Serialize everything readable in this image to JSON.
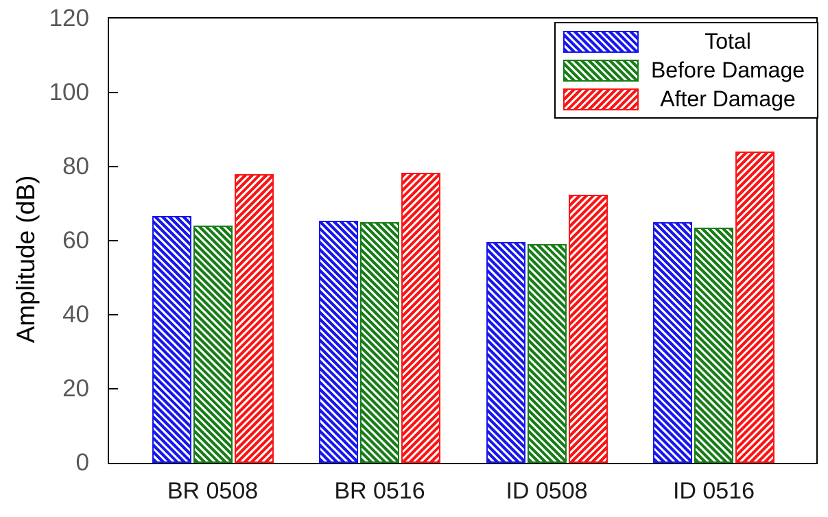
{
  "figure": {
    "background": "#ffffff"
  },
  "chart_data": {
    "type": "bar",
    "title": "",
    "xlabel": "",
    "ylabel": "Amplitude (dB)",
    "categories": [
      "BR 0508",
      "BR 0516",
      "ID 0508",
      "ID 0516"
    ],
    "series": [
      {
        "name": "Total",
        "color": "#1717ee",
        "hatch": "\\",
        "values": [
          66.7,
          65.3,
          59.6,
          65.0
        ]
      },
      {
        "name": "Before Damage",
        "color": "#177d17",
        "hatch": "\\",
        "values": [
          64.0,
          65.0,
          59.0,
          63.5
        ]
      },
      {
        "name": "After Damage",
        "color": "#fa1414",
        "hatch": "/",
        "values": [
          78.0,
          78.3,
          72.5,
          84.0
        ]
      }
    ],
    "ylim": [
      0,
      120
    ],
    "yticks": [
      0,
      20,
      40,
      60,
      80,
      100,
      120
    ],
    "grid": false,
    "legend_position": "top-right",
    "y_tick_label_color": "#595959",
    "x_tick_label_color": "#1a1a1a"
  }
}
